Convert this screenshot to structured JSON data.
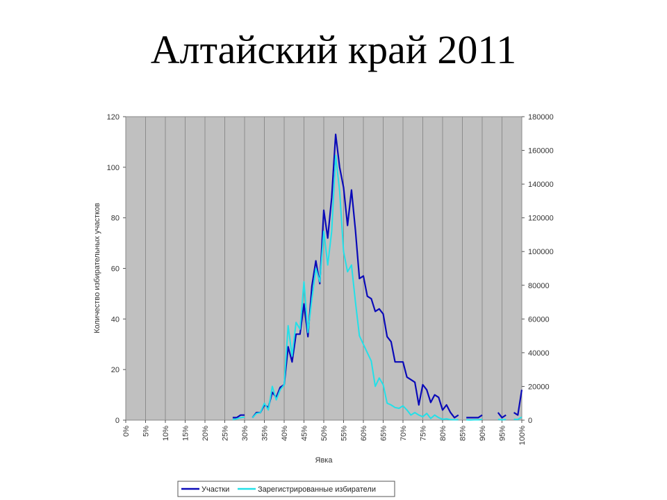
{
  "slide": {
    "title": "Алтайский край 2011"
  },
  "chart_data": {
    "type": "line",
    "title": "Алтайский край 2011",
    "xlabel": "Явка",
    "ylabel": "Количество избирательных участков",
    "y2label": "",
    "xlim": [
      0,
      100
    ],
    "ylim": [
      0,
      120
    ],
    "y2lim": [
      0,
      180000
    ],
    "x_ticks": [
      "0%",
      "5%",
      "10%",
      "15%",
      "20%",
      "25%",
      "30%",
      "35%",
      "40%",
      "45%",
      "50%",
      "55%",
      "60%",
      "65%",
      "70%",
      "75%",
      "80%",
      "85%",
      "90%",
      "95%",
      "100%"
    ],
    "y_ticks": [
      "0",
      "20",
      "40",
      "60",
      "80",
      "100",
      "120"
    ],
    "y2_ticks": [
      "0",
      "20000",
      "40000",
      "60000",
      "80000",
      "100000",
      "120000",
      "140000",
      "160000",
      "180000"
    ],
    "grid": "vertical",
    "plot_background": "#c0c0c0",
    "legend_position": "bottom",
    "series": [
      {
        "name": "Участки",
        "axis": "left",
        "color": "#0a0ab8",
        "points": [
          [
            27,
            1
          ],
          [
            28,
            1
          ],
          [
            29,
            2
          ],
          [
            30,
            2
          ],
          [
            32,
            1
          ],
          [
            33,
            3
          ],
          [
            34,
            3
          ],
          [
            35,
            6
          ],
          [
            36,
            5
          ],
          [
            37,
            11
          ],
          [
            38,
            9
          ],
          [
            39,
            13
          ],
          [
            40,
            14
          ],
          [
            41,
            29
          ],
          [
            42,
            23
          ],
          [
            43,
            34
          ],
          [
            44,
            34
          ],
          [
            45,
            46
          ],
          [
            46,
            33
          ],
          [
            47,
            53
          ],
          [
            48,
            63
          ],
          [
            49,
            54
          ],
          [
            50,
            83
          ],
          [
            51,
            72
          ],
          [
            52,
            88
          ],
          [
            53,
            113
          ],
          [
            54,
            100
          ],
          [
            55,
            92
          ],
          [
            56,
            77
          ],
          [
            57,
            91
          ],
          [
            58,
            75
          ],
          [
            59,
            56
          ],
          [
            60,
            57
          ],
          [
            61,
            49
          ],
          [
            62,
            48
          ],
          [
            63,
            43
          ],
          [
            64,
            44
          ],
          [
            65,
            42
          ],
          [
            66,
            33
          ],
          [
            67,
            31
          ],
          [
            68,
            23
          ],
          [
            69,
            23
          ],
          [
            70,
            23
          ],
          [
            71,
            17
          ],
          [
            72,
            16
          ],
          [
            73,
            15
          ],
          [
            74,
            6
          ],
          [
            75,
            14
          ],
          [
            76,
            12
          ],
          [
            77,
            7
          ],
          [
            78,
            10
          ],
          [
            79,
            9
          ],
          [
            80,
            4
          ],
          [
            81,
            6
          ],
          [
            82,
            3
          ],
          [
            83,
            1
          ],
          [
            84,
            2
          ],
          [
            86,
            1
          ],
          [
            87,
            1
          ],
          [
            88,
            1
          ],
          [
            89,
            1
          ],
          [
            90,
            2
          ],
          [
            94,
            3
          ],
          [
            95,
            1
          ],
          [
            96,
            2
          ],
          [
            98,
            3
          ],
          [
            99,
            2
          ],
          [
            100,
            12
          ]
        ]
      },
      {
        "name": "Зарегистрированные избиратели",
        "axis": "right",
        "color": "#22e0e8",
        "points": [
          [
            27,
            300
          ],
          [
            28,
            800
          ],
          [
            29,
            1500
          ],
          [
            30,
            1800
          ],
          [
            32,
            1500
          ],
          [
            33,
            4000
          ],
          [
            34,
            4500
          ],
          [
            35,
            10000
          ],
          [
            36,
            6000
          ],
          [
            37,
            20000
          ],
          [
            38,
            12000
          ],
          [
            39,
            18000
          ],
          [
            40,
            21000
          ],
          [
            41,
            56000
          ],
          [
            42,
            38000
          ],
          [
            43,
            58000
          ],
          [
            44,
            54000
          ],
          [
            45,
            82000
          ],
          [
            46,
            52000
          ],
          [
            47,
            72000
          ],
          [
            48,
            90000
          ],
          [
            49,
            82000
          ],
          [
            50,
            112000
          ],
          [
            51,
            92000
          ],
          [
            52,
            112000
          ],
          [
            53,
            157000
          ],
          [
            54,
            136000
          ],
          [
            55,
            100000
          ],
          [
            56,
            88000
          ],
          [
            57,
            92000
          ],
          [
            58,
            70000
          ],
          [
            59,
            50000
          ],
          [
            60,
            45000
          ],
          [
            61,
            40000
          ],
          [
            62,
            35000
          ],
          [
            63,
            20000
          ],
          [
            64,
            25000
          ],
          [
            65,
            21000
          ],
          [
            66,
            10000
          ],
          [
            67,
            9000
          ],
          [
            68,
            7500
          ],
          [
            69,
            7000
          ],
          [
            70,
            8500
          ],
          [
            71,
            6000
          ],
          [
            72,
            3000
          ],
          [
            73,
            4500
          ],
          [
            74,
            3000
          ],
          [
            75,
            2000
          ],
          [
            76,
            4000
          ],
          [
            77,
            1000
          ],
          [
            78,
            3000
          ],
          [
            79,
            1500
          ],
          [
            80,
            500
          ],
          [
            81,
            800
          ],
          [
            82,
            300
          ],
          [
            83,
            200
          ],
          [
            84,
            300
          ],
          [
            86,
            200
          ],
          [
            87,
            100
          ],
          [
            88,
            200
          ],
          [
            89,
            200
          ],
          [
            90,
            500
          ],
          [
            94,
            500
          ],
          [
            95,
            200
          ],
          [
            96,
            400
          ],
          [
            98,
            500
          ],
          [
            99,
            400
          ],
          [
            100,
            1800
          ]
        ]
      }
    ]
  }
}
